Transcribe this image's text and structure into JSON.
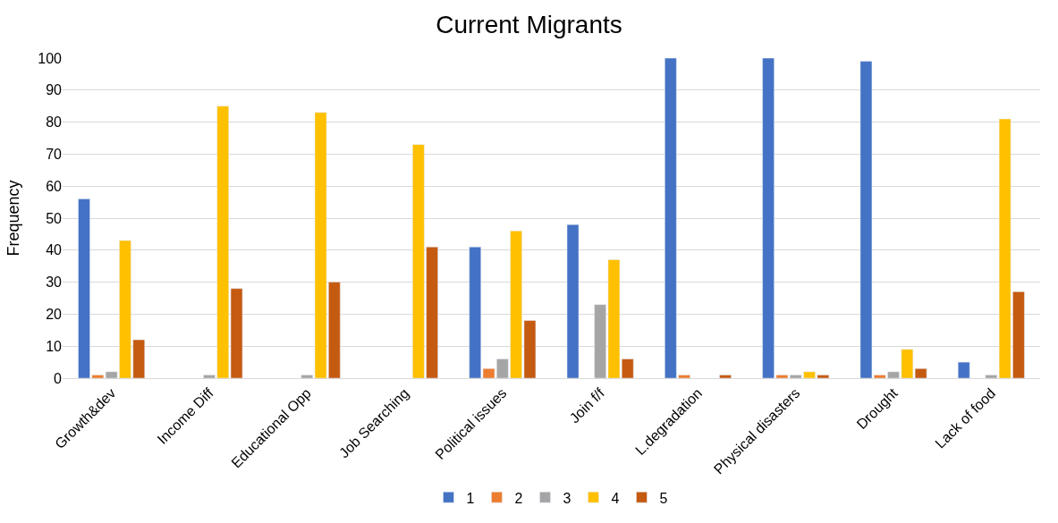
{
  "chart_data": {
    "type": "bar",
    "title": "Current Migrants",
    "ylabel": "Frequency",
    "categories": [
      "Growth&dev",
      "Income Diff",
      "Educational Opp",
      "Job Searching",
      "Political issues",
      "Join f/f",
      "L.degradation",
      "Physical disasters",
      "Drought",
      "Lack of food"
    ],
    "series": [
      {
        "name": "1",
        "color": "#4472c4",
        "values": [
          56,
          null,
          null,
          null,
          41,
          48,
          100,
          100,
          99,
          5
        ]
      },
      {
        "name": "2",
        "color": "#ed7d31",
        "values": [
          1,
          null,
          null,
          null,
          3,
          null,
          1,
          1,
          1,
          null
        ]
      },
      {
        "name": "3",
        "color": "#a5a5a5",
        "values": [
          2,
          1,
          1,
          null,
          6,
          23,
          null,
          1,
          2,
          1
        ]
      },
      {
        "name": "4",
        "color": "#ffc000",
        "values": [
          43,
          85,
          83,
          73,
          46,
          37,
          null,
          2,
          9,
          81
        ]
      },
      {
        "name": "5",
        "color": "#c55a11",
        "values": [
          12,
          28,
          30,
          41,
          18,
          6,
          1,
          1,
          3,
          27
        ]
      }
    ],
    "ylim": [
      0,
      100
    ],
    "yticks": [
      0,
      10,
      20,
      30,
      40,
      50,
      60,
      70,
      80,
      90,
      100
    ],
    "grid": "y",
    "legend": "bottom"
  }
}
